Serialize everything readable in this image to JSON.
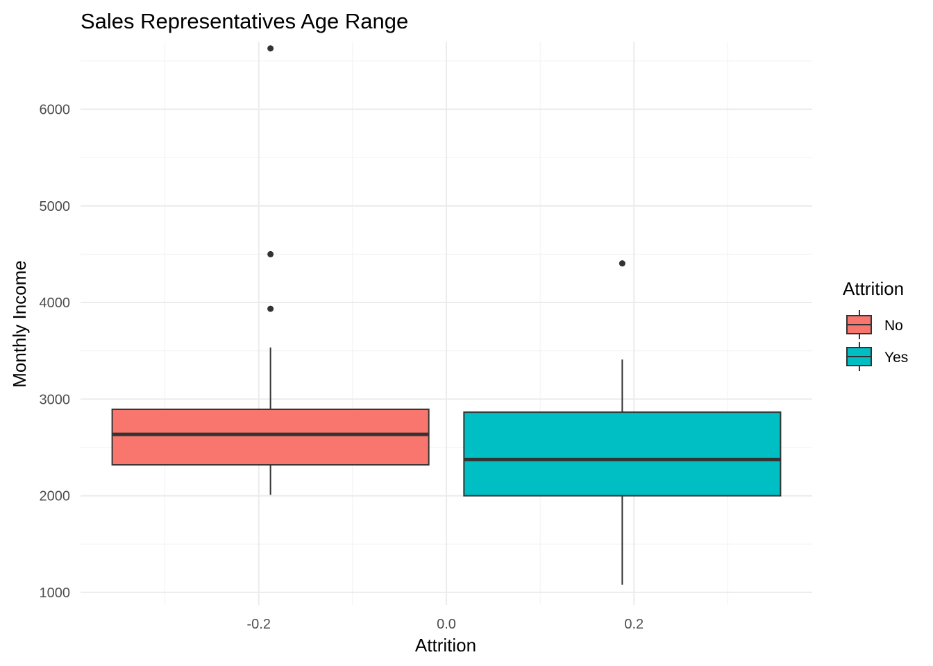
{
  "chart_data": {
    "type": "boxplot",
    "title": "Sales Representatives Age Range",
    "xlabel": "Attrition",
    "ylabel": "Monthly Income",
    "xlim": [
      -0.39,
      0.39
    ],
    "ylim": [
      870,
      6700
    ],
    "x_ticks": [
      -0.2,
      0.0,
      0.2
    ],
    "x_tick_labels": [
      "-0.2",
      "0.0",
      "0.2"
    ],
    "y_ticks": [
      1000,
      2000,
      3000,
      4000,
      5000,
      6000
    ],
    "y_tick_labels": [
      "1000",
      "2000",
      "3000",
      "4000",
      "5000",
      "6000"
    ],
    "grid": true,
    "legend": {
      "title": "Attrition",
      "position": "right",
      "entries": [
        {
          "label": "No",
          "color": "#F8766D"
        },
        {
          "label": "Yes",
          "color": "#00BFC4"
        }
      ]
    },
    "series": [
      {
        "group": "No",
        "color": "#F8766D",
        "x_center": -0.1875,
        "box_width": 0.3375,
        "whisker_low": 2010,
        "q1": 2320,
        "median": 2635,
        "q3": 2895,
        "whisker_high": 3535,
        "outliers": [
          3935,
          4500,
          6630
        ]
      },
      {
        "group": "Yes",
        "color": "#00BFC4",
        "x_center": 0.1875,
        "box_width": 0.3375,
        "whisker_low": 1080,
        "q1": 2000,
        "median": 2375,
        "q3": 2865,
        "whisker_high": 3410,
        "outliers": [
          4405
        ]
      }
    ]
  }
}
